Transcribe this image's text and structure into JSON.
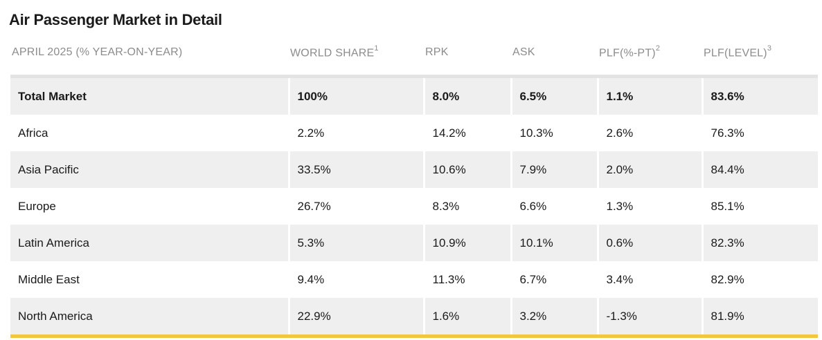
{
  "title": "Air Passenger Market in Detail",
  "header": {
    "period": "APRIL 2025 (% YEAR-ON-YEAR)",
    "world_share": "WORLD SHARE",
    "world_share_note": "1",
    "rpk": "RPK",
    "ask": "ASK",
    "plf_pt": "PLF(%-PT)",
    "plf_pt_note": "2",
    "plf_level": "PLF(LEVEL)",
    "plf_level_note": "3"
  },
  "rows": [
    {
      "region": "Total Market",
      "world_share": "100%",
      "rpk": "8.0%",
      "ask": "6.5%",
      "plf_pt": "1.1%",
      "plf_level": "83.6%"
    },
    {
      "region": "Africa",
      "world_share": "2.2%",
      "rpk": "14.2%",
      "ask": "10.3%",
      "plf_pt": "2.6%",
      "plf_level": "76.3%"
    },
    {
      "region": "Asia Pacific",
      "world_share": "33.5%",
      "rpk": "10.6%",
      "ask": "7.9%",
      "plf_pt": "2.0%",
      "plf_level": "84.4%"
    },
    {
      "region": "Europe",
      "world_share": "26.7%",
      "rpk": "8.3%",
      "ask": "6.6%",
      "plf_pt": "1.3%",
      "plf_level": "85.1%"
    },
    {
      "region": "Latin America",
      "world_share": "5.3%",
      "rpk": "10.9%",
      "ask": "10.1%",
      "plf_pt": "0.6%",
      "plf_level": "82.3%"
    },
    {
      "region": "Middle East",
      "world_share": "9.4%",
      "rpk": "11.3%",
      "ask": "6.7%",
      "plf_pt": "3.4%",
      "plf_level": "82.9%"
    },
    {
      "region": "North America",
      "world_share": "22.9%",
      "rpk": "1.6%",
      "ask": "3.2%",
      "plf_pt": "-1.3%",
      "plf_level": "81.9%"
    }
  ],
  "colors": {
    "header_text": "#8c8c8c",
    "row_shade": "#efefef",
    "accent_rule": "#f2c740"
  }
}
